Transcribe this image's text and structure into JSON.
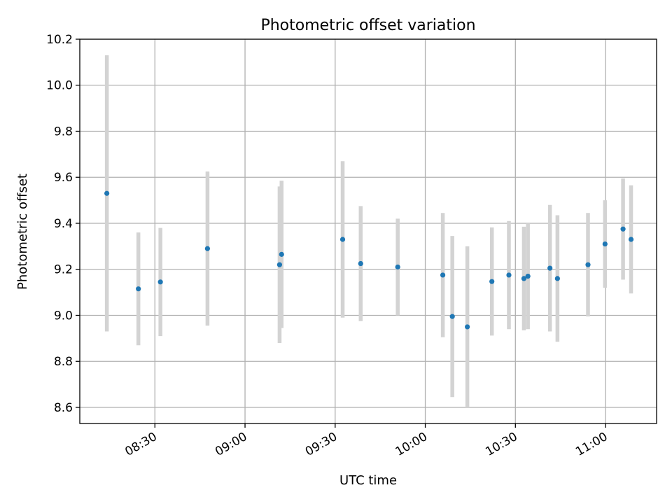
{
  "chart_data": {
    "type": "scatter",
    "title": "Photometric offset variation",
    "xlabel": "UTC time",
    "ylabel": "Photometric offset",
    "x_axis_type": "time",
    "xlim": [
      "08:05",
      "11:17"
    ],
    "ylim": [
      8.53,
      10.2
    ],
    "xticks": [
      "08:30",
      "09:00",
      "09:30",
      "10:00",
      "10:30",
      "11:00"
    ],
    "yticks": [
      8.6,
      8.8,
      9.0,
      9.2,
      9.4,
      9.6,
      9.8,
      10.0,
      10.2
    ],
    "ytick_labels": [
      "8.6",
      "8.8",
      "9.0",
      "9.2",
      "9.4",
      "9.6",
      "9.8",
      "10.0",
      "10.2"
    ],
    "grid": true,
    "errorbars": true,
    "series": [
      {
        "points": [
          {
            "x": "08:14",
            "y": 9.53,
            "err": 0.6
          },
          {
            "x": "08:24:30",
            "y": 9.115,
            "err": 0.245
          },
          {
            "x": "08:31:50",
            "y": 9.145,
            "err": 0.235
          },
          {
            "x": "08:47:30",
            "y": 9.29,
            "err": 0.335
          },
          {
            "x": "09:11:30",
            "y": 9.22,
            "err": 0.34
          },
          {
            "x": "09:12:10",
            "y": 9.265,
            "err": 0.32
          },
          {
            "x": "09:32:30",
            "y": 9.33,
            "err": 0.34
          },
          {
            "x": "09:38:30",
            "y": 9.225,
            "err": 0.25
          },
          {
            "x": "09:50:50",
            "y": 9.21,
            "err": 0.21
          },
          {
            "x": "10:05:50",
            "y": 9.175,
            "err": 0.27
          },
          {
            "x": "10:09",
            "y": 8.995,
            "err": 0.35
          },
          {
            "x": "10:14",
            "y": 8.95,
            "err": 0.35
          },
          {
            "x": "10:22:10",
            "y": 9.147,
            "err": 0.235
          },
          {
            "x": "10:27:50",
            "y": 9.175,
            "err": 0.235
          },
          {
            "x": "10:32:50",
            "y": 9.16,
            "err": 0.225
          },
          {
            "x": "10:34:10",
            "y": 9.17,
            "err": 0.23
          },
          {
            "x": "10:41:30",
            "y": 9.205,
            "err": 0.275
          },
          {
            "x": "10:44",
            "y": 9.16,
            "err": 0.275
          },
          {
            "x": "10:54:10",
            "y": 9.22,
            "err": 0.225
          },
          {
            "x": "10:59:50",
            "y": 9.31,
            "err": 0.19
          },
          {
            "x": "11:05:50",
            "y": 9.375,
            "err": 0.22
          },
          {
            "x": "11:08:30",
            "y": 9.33,
            "err": 0.235
          }
        ]
      }
    ]
  }
}
